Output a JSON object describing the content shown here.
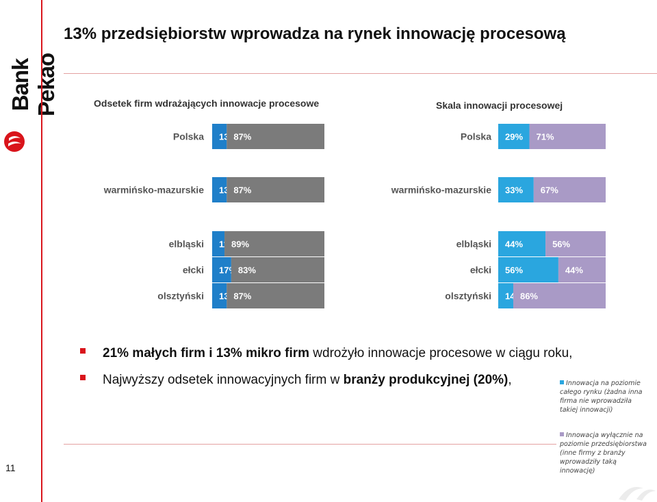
{
  "brand": {
    "name": "Bank Pekao"
  },
  "page": {
    "number": "11"
  },
  "title": "13% przedsiębiorstw wprowadza na rynek innowację procesową",
  "colors": {
    "accent": "#d9141b",
    "blue": "#1f7fc9",
    "blue_light": "#2aa6df",
    "grey": "#7b7b7b",
    "purple": "#a99ac6"
  },
  "chart_data": [
    {
      "type": "bar",
      "stacked": true,
      "orientation": "horizontal",
      "title": "Odsetek firm wdrażających innowacje procesowe",
      "categories": [
        "Polska",
        "warmińsko-mazurskie",
        "elbląski",
        "ełcki",
        "olsztyński"
      ],
      "series": [
        {
          "values": [
            13,
            13,
            11,
            17,
            13
          ],
          "labels": [
            "13%",
            "13%",
            "11%",
            "17%",
            "13%"
          ],
          "color": "#1f7fc9"
        },
        {
          "values": [
            87,
            87,
            89,
            83,
            87
          ],
          "labels": [
            "87%",
            "87%",
            "89%",
            "83%",
            "87%"
          ],
          "color": "#7b7b7b"
        }
      ]
    },
    {
      "type": "bar",
      "stacked": true,
      "orientation": "horizontal",
      "title": "Skala innowacji procesowej",
      "categories": [
        "Polska",
        "warmińsko-mazurskie",
        "elbląski",
        "ełcki",
        "olsztyński"
      ],
      "series": [
        {
          "name": "Innowacja na poziomie całego rynku (żadna inna firma nie wprowadziła takiej innowacji)",
          "values": [
            29,
            33,
            44,
            56,
            14
          ],
          "labels": [
            "29%",
            "33%",
            "44%",
            "56%",
            "14%"
          ],
          "color": "#2aa6df"
        },
        {
          "name": "Innowacja wyłącznie na poziomie przedsiębiorstwa (inne firmy z branży wprowadziły taką innowację)",
          "values": [
            71,
            67,
            56,
            44,
            86
          ],
          "labels": [
            "71%",
            "67%",
            "56%",
            "44%",
            "86%"
          ],
          "color": "#a99ac6"
        }
      ]
    }
  ],
  "bullets": [
    {
      "bold": "21% małych firm i 13% mikro firm",
      "rest": " wdrożyło innowacje procesowe w ciągu roku,"
    },
    {
      "pre": "Najwyższy odsetek innowacyjnych firm w ",
      "bold": "branży produkcyjnej (20%)",
      "post": ","
    }
  ]
}
